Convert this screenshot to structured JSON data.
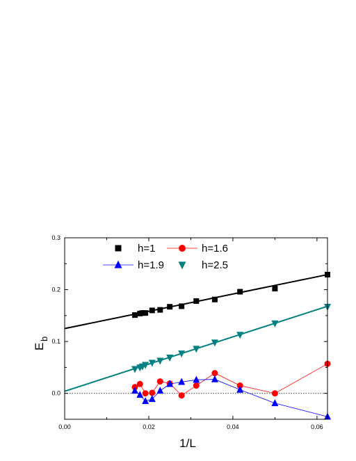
{
  "chart_data": {
    "type": "scatter",
    "xlabel": "1/L",
    "ylabel_main": "E",
    "ylabel_sub": "b",
    "xlim": [
      0.0,
      0.0625
    ],
    "ylim": [
      -0.05,
      0.3
    ],
    "xticks": [
      0.0,
      0.02,
      0.04,
      0.06
    ],
    "xtick_labels": [
      "0.00",
      "0.02",
      "0.04",
      "0.06"
    ],
    "yticks": [
      0.0,
      0.1,
      0.2,
      0.3
    ],
    "ytick_labels": [
      "0.0",
      "0.1",
      "0.2",
      "0.3"
    ],
    "zero_line": true,
    "grid": false,
    "legend_position": "top",
    "series": [
      {
        "name": "h=1",
        "color": "#000000",
        "marker": "square",
        "connect_points": false,
        "fit_line": [
          [
            0.0,
            0.125
          ],
          [
            0.0625,
            0.229
          ]
        ],
        "x": [
          0.0167,
          0.0179,
          0.0185,
          0.0192,
          0.0208,
          0.0227,
          0.025,
          0.0278,
          0.0313,
          0.0357,
          0.0417,
          0.05,
          0.0625
        ],
        "y": [
          0.151,
          0.154,
          0.155,
          0.155,
          0.16,
          0.161,
          0.167,
          0.168,
          0.178,
          0.181,
          0.196,
          0.202,
          0.229
        ]
      },
      {
        "name": "h=1.6",
        "color": "#ff0000",
        "marker": "circle",
        "connect_points": true,
        "x": [
          0.0167,
          0.0179,
          0.0192,
          0.0208,
          0.0227,
          0.025,
          0.0278,
          0.0313,
          0.0357,
          0.0417,
          0.05,
          0.0625
        ],
        "y": [
          0.012,
          0.018,
          0.0,
          0.001,
          0.023,
          0.019,
          -0.004,
          0.015,
          0.039,
          0.015,
          0.0,
          0.057
        ]
      },
      {
        "name": "h=1.9",
        "color": "#0000ff",
        "marker": "triangle-up",
        "connect_points": true,
        "x": [
          0.0167,
          0.0179,
          0.0192,
          0.0208,
          0.0227,
          0.025,
          0.0278,
          0.0313,
          0.0357,
          0.0417,
          0.05,
          0.0625
        ],
        "y": [
          0.005,
          -0.003,
          -0.015,
          -0.011,
          0.005,
          0.018,
          0.022,
          0.026,
          0.027,
          0.007,
          -0.019,
          -0.045
        ]
      },
      {
        "name": "h=2.5",
        "color": "#008080",
        "marker": "triangle-down",
        "connect_points": false,
        "fit_line": [
          [
            0.0,
            0.004
          ],
          [
            0.0625,
            0.168
          ]
        ],
        "x": [
          0.0167,
          0.0179,
          0.0185,
          0.0192,
          0.0208,
          0.0227,
          0.025,
          0.0278,
          0.0313,
          0.0357,
          0.0417,
          0.05,
          0.0625
        ],
        "y": [
          0.047,
          0.05,
          0.052,
          0.055,
          0.059,
          0.063,
          0.069,
          0.077,
          0.086,
          0.098,
          0.113,
          0.135,
          0.167
        ]
      }
    ]
  }
}
